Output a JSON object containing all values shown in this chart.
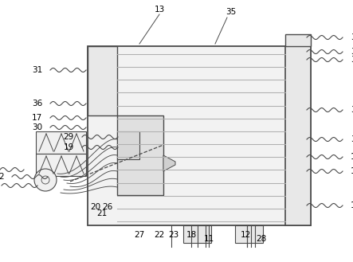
{
  "bg_color": "#ffffff",
  "lc": "#4a4a4a",
  "mg": "#aaaaaa",
  "lg": "#d0d0d0",
  "fig_width": 4.43,
  "fig_height": 3.29,
  "dpi": 100
}
